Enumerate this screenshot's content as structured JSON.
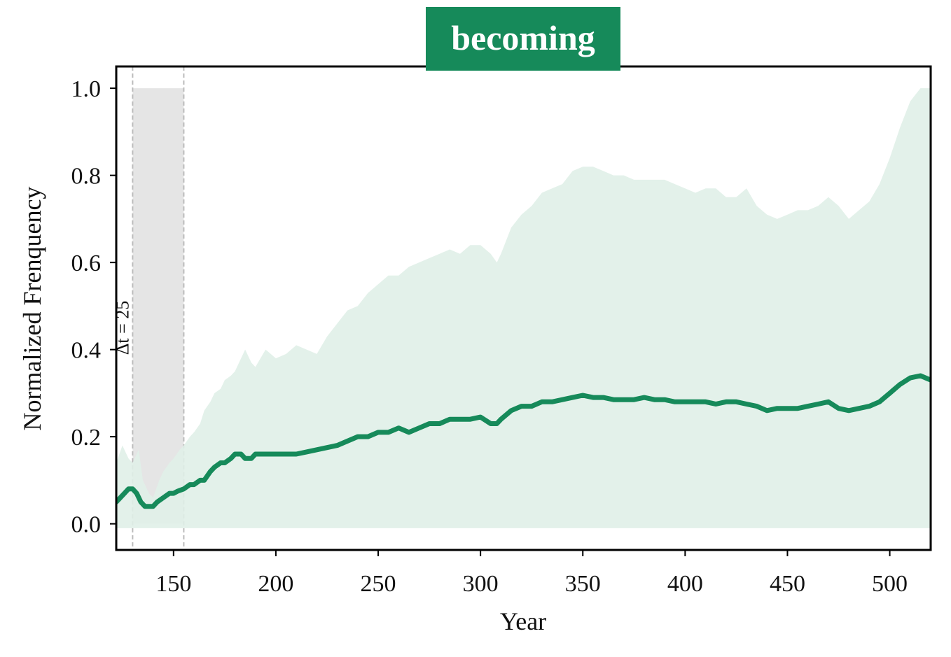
{
  "chart_data": {
    "type": "line",
    "title": "becoming",
    "xlabel": "Year",
    "ylabel": "Normalized Frenquency",
    "xlim": [
      122,
      520
    ],
    "ylim": [
      -0.06,
      1.05
    ],
    "xticks": [
      150,
      200,
      250,
      300,
      350,
      400,
      450,
      500
    ],
    "yticks": [
      0.0,
      0.2,
      0.4,
      0.6,
      0.8,
      1.0
    ],
    "xtick_labels": [
      "150",
      "200",
      "250",
      "300",
      "350",
      "400",
      "450",
      "500"
    ],
    "ytick_labels": [
      "0.0",
      "0.2",
      "0.4",
      "0.6",
      "0.8",
      "1.0"
    ],
    "grid": false,
    "colors": {
      "line": "#168a5a",
      "band": "#e0efe8",
      "title_bg": "#168a5a",
      "highlight": "#e5e5e5",
      "vline": "#bbbbbb"
    },
    "annotation": {
      "text": "Δt = 25",
      "window": [
        130,
        155
      ]
    },
    "series": [
      {
        "kind": "band",
        "x": [
          122,
          125,
          128,
          130,
          133,
          135,
          138,
          140,
          143,
          145,
          148,
          150,
          153,
          155,
          158,
          160,
          163,
          165,
          168,
          170,
          173,
          175,
          178,
          180,
          183,
          185,
          188,
          190,
          195,
          200,
          205,
          210,
          215,
          220,
          225,
          230,
          235,
          240,
          245,
          250,
          255,
          260,
          265,
          270,
          275,
          280,
          285,
          290,
          295,
          300,
          305,
          308,
          310,
          315,
          320,
          325,
          330,
          335,
          340,
          345,
          350,
          355,
          360,
          365,
          370,
          375,
          380,
          385,
          390,
          395,
          400,
          405,
          410,
          415,
          420,
          425,
          430,
          435,
          440,
          445,
          450,
          455,
          460,
          465,
          470,
          475,
          480,
          485,
          490,
          495,
          500,
          505,
          510,
          515,
          520
        ],
        "upper": [
          0.14,
          0.18,
          0.15,
          0.14,
          0.17,
          0.1,
          0.07,
          0.06,
          0.1,
          0.12,
          0.14,
          0.15,
          0.17,
          0.18,
          0.2,
          0.21,
          0.23,
          0.26,
          0.28,
          0.3,
          0.31,
          0.33,
          0.34,
          0.35,
          0.38,
          0.4,
          0.37,
          0.36,
          0.4,
          0.38,
          0.39,
          0.41,
          0.4,
          0.39,
          0.43,
          0.46,
          0.49,
          0.5,
          0.53,
          0.55,
          0.57,
          0.57,
          0.59,
          0.6,
          0.61,
          0.62,
          0.63,
          0.62,
          0.64,
          0.64,
          0.62,
          0.6,
          0.62,
          0.68,
          0.71,
          0.73,
          0.76,
          0.77,
          0.78,
          0.81,
          0.82,
          0.82,
          0.81,
          0.8,
          0.8,
          0.79,
          0.79,
          0.79,
          0.79,
          0.78,
          0.77,
          0.76,
          0.77,
          0.77,
          0.75,
          0.75,
          0.77,
          0.73,
          0.71,
          0.7,
          0.71,
          0.72,
          0.72,
          0.73,
          0.75,
          0.73,
          0.7,
          0.72,
          0.74,
          0.78,
          0.84,
          0.91,
          0.97,
          1.0,
          1.0
        ],
        "lower": [
          -0.01,
          -0.01,
          -0.01,
          -0.01,
          -0.01,
          -0.01,
          -0.01,
          -0.01,
          -0.01,
          -0.01,
          -0.01,
          -0.01,
          -0.01,
          -0.01,
          -0.01,
          -0.01,
          -0.01,
          -0.01,
          -0.01,
          -0.01,
          -0.01,
          -0.01,
          -0.01,
          -0.01,
          -0.01,
          -0.01,
          -0.01,
          -0.01,
          -0.01,
          -0.01,
          -0.01,
          -0.01,
          -0.01,
          -0.01,
          -0.01,
          -0.01,
          -0.01,
          -0.01,
          -0.01,
          -0.01,
          -0.01,
          -0.01,
          -0.01,
          -0.01,
          -0.01,
          -0.01,
          -0.01,
          -0.01,
          -0.01,
          -0.01,
          -0.01,
          -0.01,
          -0.01,
          -0.01,
          -0.01,
          -0.01,
          -0.01,
          -0.01,
          -0.01,
          -0.01,
          -0.01,
          -0.01,
          -0.01,
          -0.01,
          -0.01,
          -0.01,
          -0.01,
          -0.01,
          -0.01,
          -0.01,
          -0.01,
          -0.01,
          -0.01,
          -0.01,
          -0.01,
          -0.01,
          -0.01,
          -0.01,
          -0.01,
          -0.01,
          -0.01,
          -0.01,
          -0.01,
          -0.01,
          -0.01,
          -0.01,
          -0.01,
          -0.01,
          -0.01,
          -0.01,
          -0.01,
          -0.01,
          -0.01,
          -0.01,
          -0.01
        ]
      },
      {
        "kind": "line",
        "x": [
          122,
          124,
          126,
          128,
          130,
          132,
          134,
          136,
          138,
          140,
          142,
          145,
          148,
          150,
          152,
          155,
          158,
          160,
          163,
          165,
          168,
          170,
          173,
          175,
          178,
          180,
          183,
          185,
          188,
          190,
          195,
          200,
          205,
          210,
          215,
          220,
          225,
          230,
          235,
          240,
          245,
          250,
          255,
          260,
          265,
          270,
          275,
          280,
          285,
          290,
          295,
          300,
          305,
          308,
          310,
          315,
          320,
          325,
          330,
          335,
          340,
          345,
          350,
          355,
          360,
          365,
          370,
          375,
          380,
          385,
          390,
          395,
          400,
          405,
          410,
          415,
          420,
          425,
          430,
          435,
          440,
          445,
          450,
          455,
          460,
          465,
          470,
          475,
          480,
          485,
          490,
          495,
          500,
          505,
          510,
          515,
          520
        ],
        "y": [
          0.05,
          0.06,
          0.07,
          0.08,
          0.08,
          0.07,
          0.05,
          0.04,
          0.04,
          0.04,
          0.05,
          0.06,
          0.07,
          0.07,
          0.075,
          0.08,
          0.09,
          0.09,
          0.1,
          0.1,
          0.12,
          0.13,
          0.14,
          0.14,
          0.15,
          0.16,
          0.16,
          0.15,
          0.15,
          0.16,
          0.16,
          0.16,
          0.16,
          0.16,
          0.165,
          0.17,
          0.175,
          0.18,
          0.19,
          0.2,
          0.2,
          0.21,
          0.21,
          0.22,
          0.21,
          0.22,
          0.23,
          0.23,
          0.24,
          0.24,
          0.24,
          0.245,
          0.23,
          0.23,
          0.24,
          0.26,
          0.27,
          0.27,
          0.28,
          0.28,
          0.285,
          0.29,
          0.295,
          0.29,
          0.29,
          0.285,
          0.285,
          0.285,
          0.29,
          0.285,
          0.285,
          0.28,
          0.28,
          0.28,
          0.28,
          0.275,
          0.28,
          0.28,
          0.275,
          0.27,
          0.26,
          0.265,
          0.265,
          0.265,
          0.27,
          0.275,
          0.28,
          0.265,
          0.26,
          0.265,
          0.27,
          0.28,
          0.3,
          0.32,
          0.335,
          0.34,
          0.33
        ]
      }
    ]
  }
}
